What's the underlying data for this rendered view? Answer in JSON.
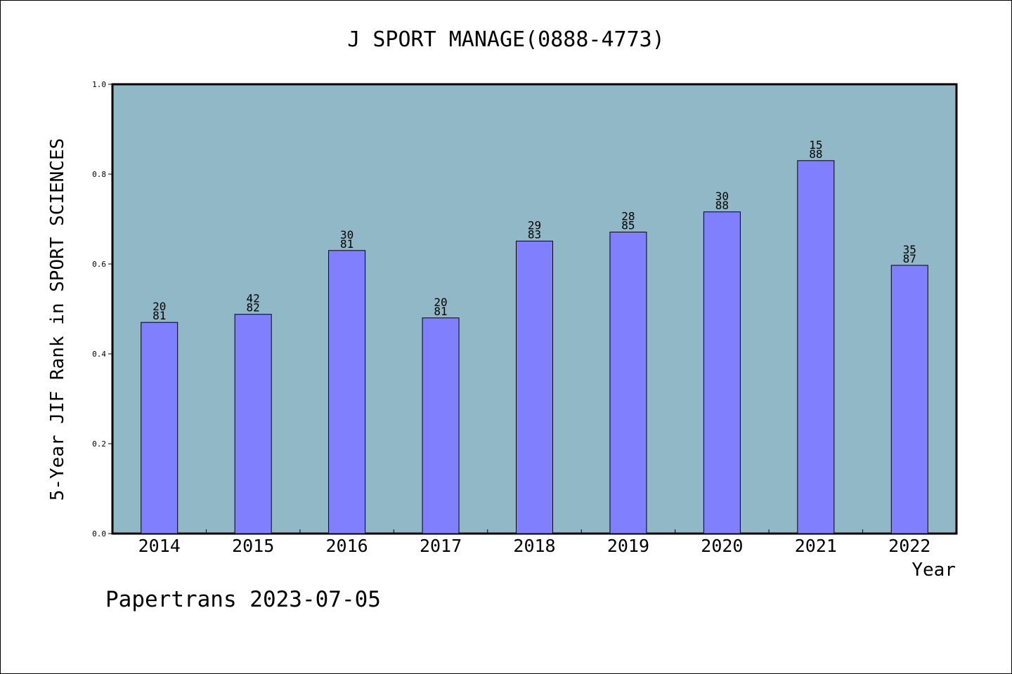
{
  "chart_data": {
    "type": "bar",
    "title": "J SPORT MANAGE(0888-4773)",
    "xlabel": "Year",
    "ylabel": "5-Year JIF Rank in SPORT SCIENCES",
    "footer": "Papertrans 2023-07-05",
    "categories": [
      "2014",
      "2015",
      "2016",
      "2017",
      "2018",
      "2019",
      "2020",
      "2021",
      "2022"
    ],
    "values": [
      0.47,
      0.488,
      0.63,
      0.48,
      0.651,
      0.671,
      0.716,
      0.83,
      0.597
    ],
    "bar_labels": [
      [
        "20",
        "81"
      ],
      [
        "42",
        "82"
      ],
      [
        "30",
        "81"
      ],
      [
        "20",
        "81"
      ],
      [
        "29",
        "83"
      ],
      [
        "28",
        "85"
      ],
      [
        "30",
        "88"
      ],
      [
        "15",
        "88"
      ],
      [
        "35",
        "87"
      ]
    ],
    "ylim": [
      0,
      1.0
    ],
    "yticks": [
      "0.0",
      "0.2",
      "0.4",
      "0.6",
      "0.8",
      "1.0"
    ],
    "grid": false,
    "colors": {
      "plot_background": "#90b8c7",
      "bar_fill": "#8080ff",
      "bar_stroke": "#000000",
      "axis": "#000000"
    }
  }
}
